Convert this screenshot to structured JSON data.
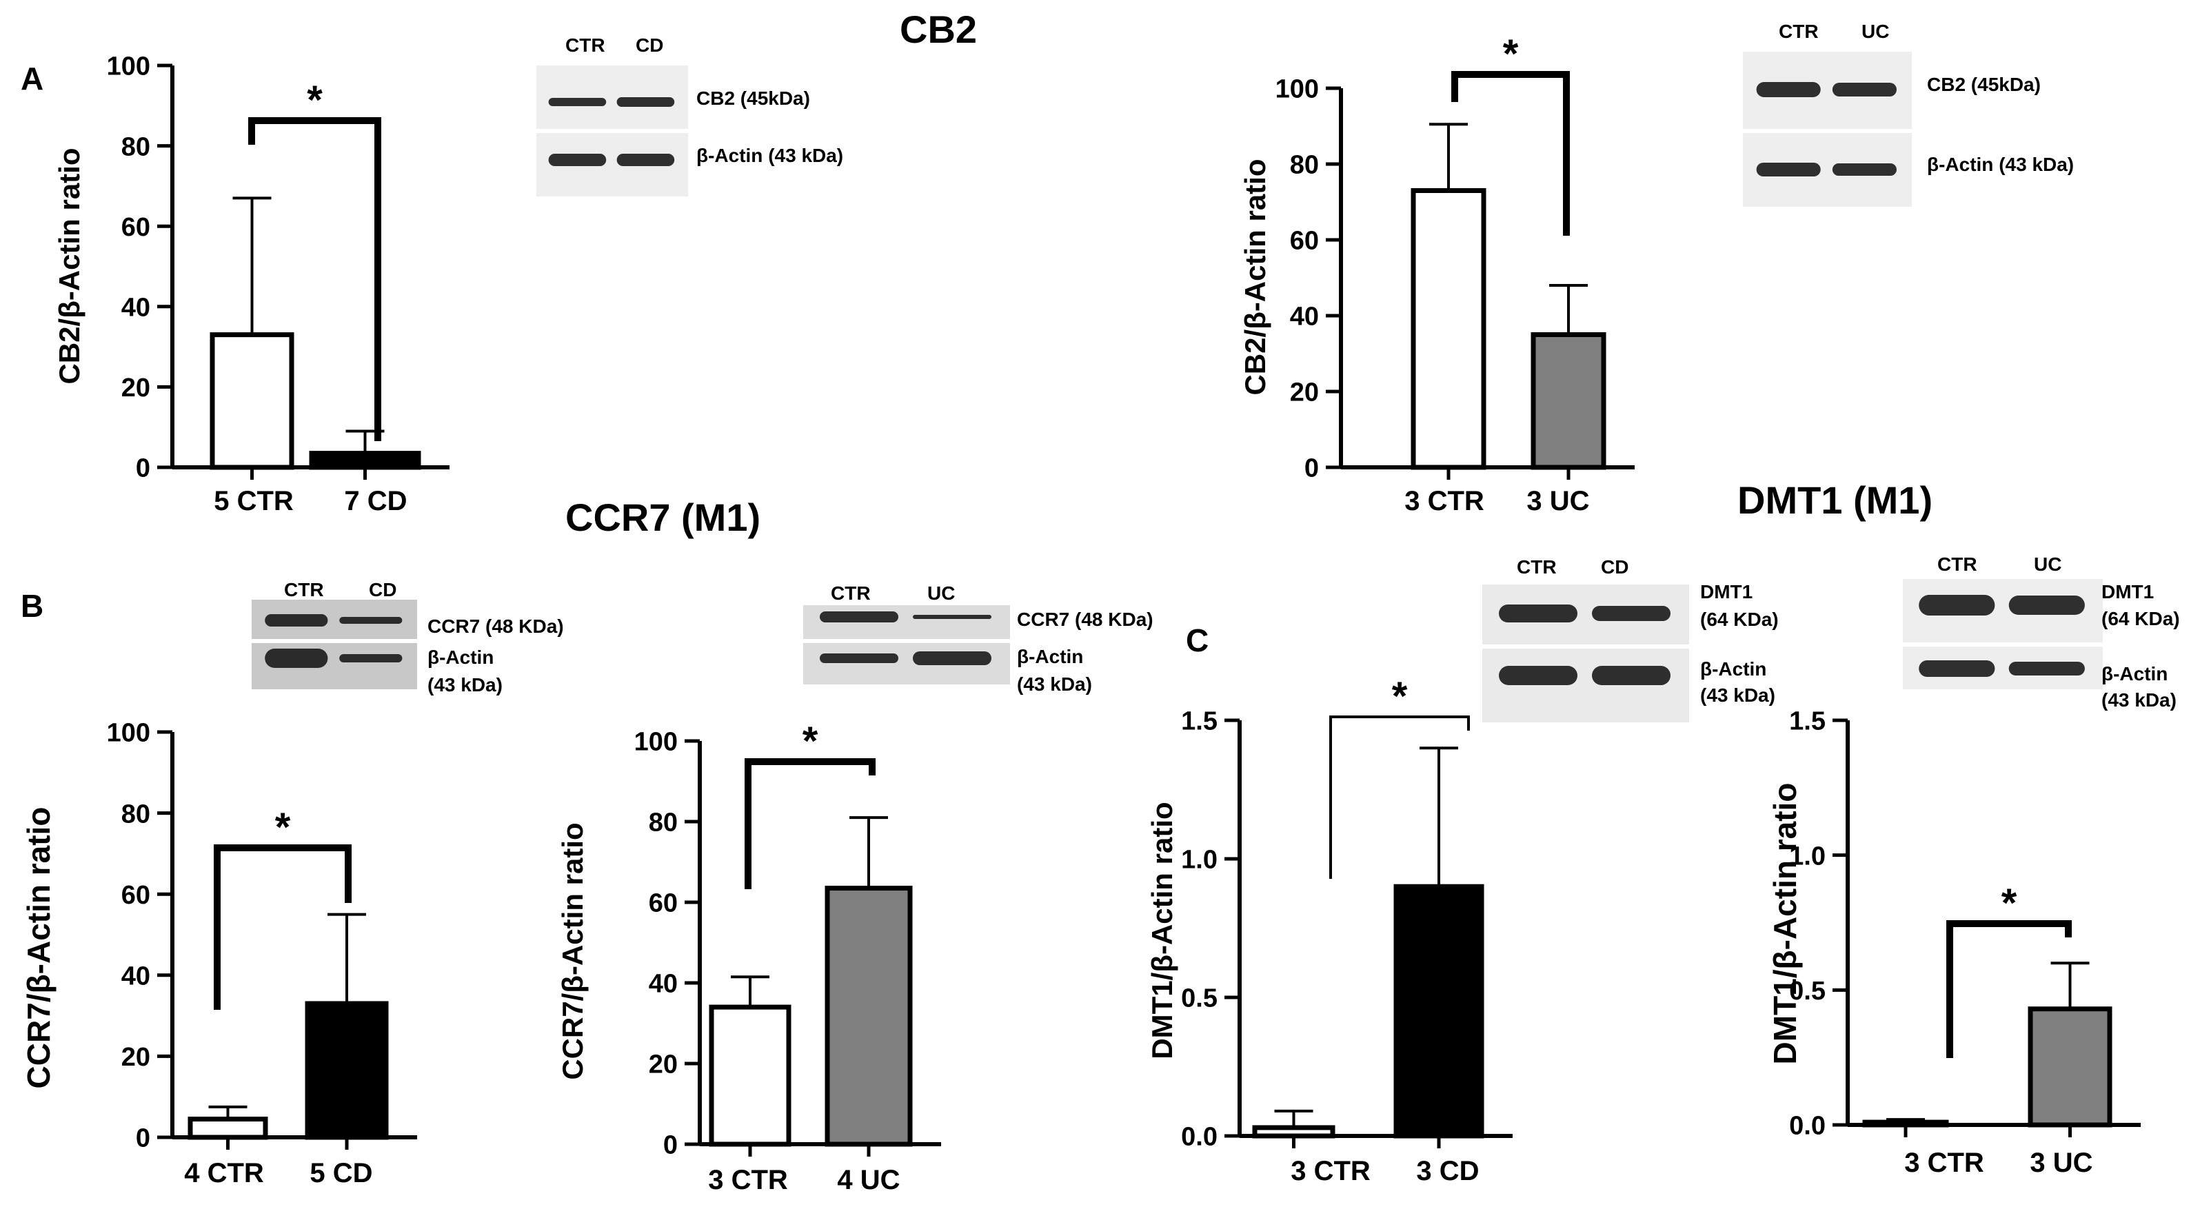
{
  "panel_letters": {
    "a": "A",
    "b": "B",
    "c": "C"
  },
  "section_titles": {
    "cb2": "CB2",
    "ccr7": "CCR7 (M1)",
    "dmt1": "DMT1 (M1)"
  },
  "blots": {
    "a_cd": {
      "lanes": [
        "CTR",
        "CD"
      ],
      "labels": [
        [
          "CB2  (45kDa)"
        ],
        [
          "β-Actin (43 kDa)"
        ]
      ]
    },
    "a_uc": {
      "lanes": [
        "CTR",
        "UC"
      ],
      "labels": [
        [
          "CB2  (45kDa)"
        ],
        [
          "β-Actin (43 kDa)"
        ]
      ]
    },
    "b_cd": {
      "lanes": [
        "CTR",
        "CD"
      ],
      "labels": [
        [
          "CCR7 (48 KDa)"
        ],
        [
          "β-Actin",
          "(43 kDa)"
        ]
      ]
    },
    "b_uc": {
      "lanes": [
        "CTR",
        "UC"
      ],
      "labels": [
        [
          "CCR7 (48 KDa)"
        ],
        [
          "β-Actin",
          "(43 kDa)"
        ]
      ]
    },
    "c_cd": {
      "lanes": [
        "CTR",
        "CD"
      ],
      "labels": [
        [
          "DMT1",
          "(64 KDa)"
        ],
        [
          "β-Actin",
          "(43 kDa)"
        ]
      ]
    },
    "c_uc": {
      "lanes": [
        "CTR",
        "UC"
      ],
      "labels": [
        [
          "DMT1",
          "(64 KDa)"
        ],
        [
          "β-Actin",
          "(43 kDa)"
        ]
      ]
    }
  },
  "colors": {
    "ctr": "#ffffff",
    "cd": "#000000",
    "uc": "#808080",
    "axis": "#000000"
  },
  "chart_data": [
    {
      "id": "a_cd",
      "type": "bar",
      "categories": [
        "5 CTR",
        "7 CD"
      ],
      "values": [
        33,
        3.5
      ],
      "errors": [
        34,
        5.5
      ],
      "ylabel": "CB2/β-Actin ratio",
      "ylim": [
        0,
        100
      ],
      "ticks": [
        "0",
        "20",
        "40",
        "60",
        "80",
        "100"
      ],
      "significance": "*"
    },
    {
      "id": "a_uc",
      "type": "bar",
      "categories": [
        "3 CTR",
        "3 UC"
      ],
      "values": [
        73,
        35
      ],
      "errors": [
        17.5,
        13
      ],
      "ylabel": "CB2/β-Actin ratio",
      "ylim": [
        0,
        100
      ],
      "ticks": [
        "0",
        "20",
        "40",
        "60",
        "80",
        "100"
      ],
      "significance": "*"
    },
    {
      "id": "b_cd",
      "type": "bar",
      "categories": [
        "4  CTR",
        "5 CD"
      ],
      "values": [
        4.5,
        33
      ],
      "errors": [
        3,
        22
      ],
      "ylabel": "CCR7/β-Actin ratio",
      "ylim": [
        0,
        100
      ],
      "ticks": [
        "0",
        "20",
        "40",
        "60",
        "80",
        "100"
      ],
      "significance": "*"
    },
    {
      "id": "b_uc",
      "type": "bar",
      "categories": [
        "3  CTR",
        "4 UC"
      ],
      "values": [
        34,
        63.5
      ],
      "errors": [
        7.5,
        17.5
      ],
      "ylabel": "CCR7/β-Actin ratio",
      "ylim": [
        0,
        100
      ],
      "ticks": [
        "0",
        "20",
        "40",
        "60",
        "80",
        "100"
      ],
      "significance": "*"
    },
    {
      "id": "c_cd",
      "type": "bar",
      "categories": [
        "3 CTR",
        "3 CD"
      ],
      "values": [
        0.03,
        0.9
      ],
      "errors": [
        0.06,
        0.5
      ],
      "ylabel": "DMT1/β-Actin ratio",
      "ylim": [
        0,
        1.5
      ],
      "ticks": [
        "0.0",
        "0.5",
        "1.0",
        "1.5"
      ],
      "significance": "*"
    },
    {
      "id": "c_uc",
      "type": "bar",
      "categories": [
        "3 CTR",
        "3 UC"
      ],
      "values": [
        0.01,
        0.43
      ],
      "errors": [
        0.01,
        0.17
      ],
      "ylabel": "DMT1/β-Actin ratio",
      "ylim": [
        0,
        1.5
      ],
      "ticks": [
        "0.0",
        "0.5",
        "1.0",
        "1.5"
      ],
      "significance": "*"
    }
  ]
}
